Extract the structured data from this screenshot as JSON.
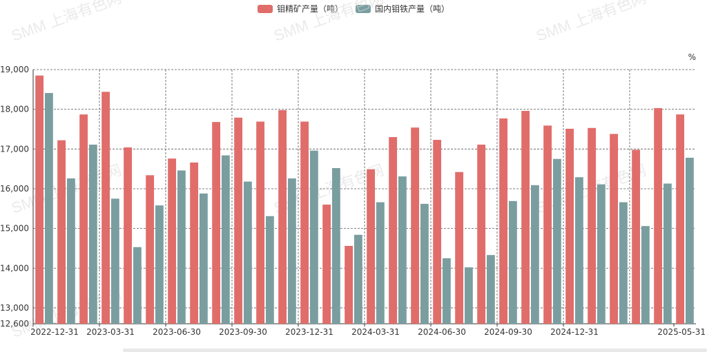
{
  "legend": {
    "series1": "钼精矿产量（吨）",
    "series2": "国内钼铁产量（吨）"
  },
  "unit_label": "%",
  "colors": {
    "series1": "#e06d6a",
    "series2": "#7a9ea0"
  },
  "watermark": "SMM 上海有色网",
  "chart_data": {
    "type": "bar",
    "ylim": [
      12600,
      19000
    ],
    "yticks": [
      "12,600",
      "13,000",
      "14,000",
      "15,000",
      "16,000",
      "17,000",
      "18,000",
      "19,000"
    ],
    "x_tick_labels": [
      "2022-12-31",
      "2023-03-31",
      "2023-06-30",
      "2023-09-30",
      "2023-12-31",
      "2024-03-31",
      "2024-06-30",
      "2024-09-30",
      "2024-12-31",
      "2025-05-31"
    ],
    "categories": [
      "2022-12",
      "2023-01",
      "2023-02",
      "2023-03",
      "2023-04",
      "2023-05",
      "2023-06",
      "2023-07",
      "2023-08",
      "2023-09",
      "2023-10",
      "2023-11",
      "2023-12",
      "2024-01",
      "2024-02",
      "2024-03",
      "2024-04",
      "2024-05",
      "2024-06",
      "2024-07",
      "2024-08",
      "2024-09",
      "2024-10",
      "2024-11",
      "2024-12",
      "2025-01",
      "2025-02",
      "2025-03",
      "2025-04",
      "2025-05"
    ],
    "series": [
      {
        "name": "钼精矿产量（吨）",
        "values": [
          18850,
          17220,
          17870,
          18440,
          17040,
          16340,
          16760,
          16660,
          17680,
          17790,
          17690,
          17980,
          17690,
          15600,
          14560,
          16490,
          17300,
          17540,
          17230,
          16420,
          17110,
          17770,
          17960,
          17590,
          17510,
          17530,
          17380,
          16980,
          18030,
          17870
        ]
      },
      {
        "name": "国内钼铁产量（吨）",
        "values": [
          18410,
          16260,
          17110,
          15750,
          14530,
          15580,
          16460,
          15880,
          16840,
          16180,
          15310,
          16260,
          16960,
          16520,
          14840,
          15660,
          16310,
          15620,
          14250,
          14020,
          14330,
          15690,
          16090,
          16750,
          16290,
          16110,
          15660,
          15060,
          16130,
          16780
        ]
      }
    ],
    "grid": true
  }
}
